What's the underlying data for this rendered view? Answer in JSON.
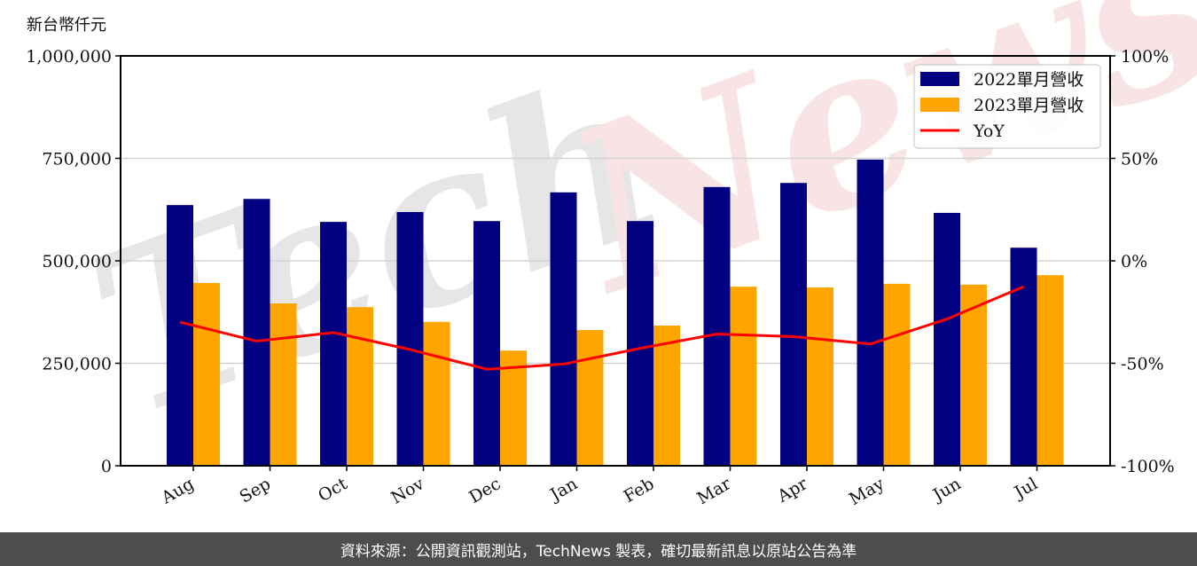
{
  "chart_data": {
    "type": "bar",
    "title": "",
    "ylabel": "新台幣仟元",
    "xlabel": "",
    "categories": [
      "Aug",
      "Sep",
      "Oct",
      "Nov",
      "Dec",
      "Jan",
      "Feb",
      "Mar",
      "Apr",
      "May",
      "Jun",
      "Jul"
    ],
    "series": [
      {
        "name": "2022單月營收",
        "type": "bar",
        "axis": "left",
        "color": "#000080",
        "values": [
          636000,
          651000,
          595000,
          619000,
          597000,
          667000,
          597000,
          680000,
          690000,
          747000,
          617000,
          532000
        ]
      },
      {
        "name": "2023單月營收",
        "type": "bar",
        "axis": "left",
        "color": "#ffa500",
        "values": [
          446000,
          396000,
          387000,
          351000,
          281000,
          331000,
          342000,
          437000,
          435000,
          444000,
          442000,
          465000
        ]
      },
      {
        "name": "YoY",
        "type": "line",
        "axis": "right",
        "color": "#ff0000",
        "values": [
          -29.9,
          -39.2,
          -35.0,
          -43.3,
          -52.9,
          -50.4,
          -42.7,
          -35.7,
          -37.0,
          -40.6,
          -28.4,
          -12.6
        ]
      }
    ],
    "ylim": [
      0,
      1000000
    ],
    "yticks": [
      "0",
      "250,000",
      "500,000",
      "750,000",
      "1,000,000"
    ],
    "y2lim": [
      -100,
      100
    ],
    "y2ticks": [
      "-100%",
      "-50%",
      "0%",
      "50%",
      "100%"
    ],
    "grid": true,
    "legend_position": "upper right",
    "watermark": "TechNews"
  },
  "footer": {
    "text": "資料來源：公開資訊觀測站，TechNews 製表，確切最新訊息以原站公告為準"
  }
}
